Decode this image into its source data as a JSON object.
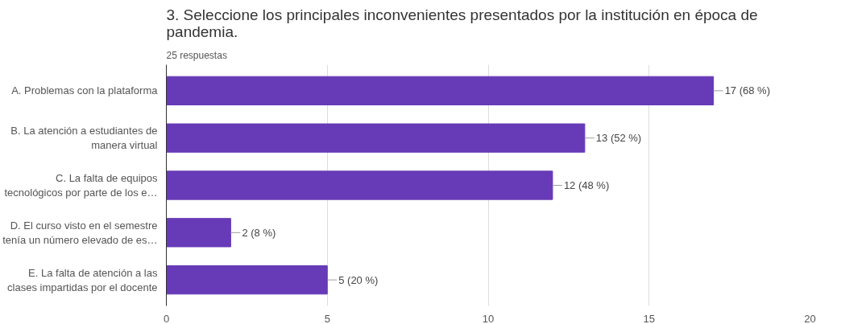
{
  "chart_data": {
    "type": "bar",
    "orientation": "horizontal",
    "title": "3.     Seleccione los principales inconvenientes presentados por la institución en época de\npandemia.",
    "subtitle": "25 respuestas",
    "categories": [
      "A. Problemas con la plataforma",
      "B. La atención a estudiantes de\nmanera virtual",
      "C. La falta de equipos\ntecnológicos por parte de los e…",
      "D. El curso visto en el semestre\ntenía un número elevado de es…",
      "E. La falta de atención a las\nclases impartidas por el docente"
    ],
    "values": [
      17,
      13,
      12,
      2,
      5
    ],
    "value_labels": [
      "17 (68 %)",
      "13 (52 %)",
      "12 (48 %)",
      "2 (8 %)",
      "5 (20 %)"
    ],
    "color": "#673ab7",
    "xlim": [
      0,
      20
    ],
    "xticks": [
      0,
      5,
      10,
      15,
      20
    ],
    "grid": "x"
  }
}
